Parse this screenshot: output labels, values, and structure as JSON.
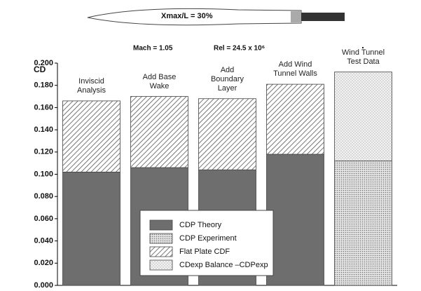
{
  "chart_data": {
    "type": "stacked-bar",
    "banner": "Xmax/L = 30%",
    "annotations": [
      "Mach = 1.05",
      "Rel = 24.5 x 10⁶"
    ],
    "y_label": "CD",
    "categories": [
      "Inviscid Analysis",
      "Add Base Wake",
      "Add Boundary Layer",
      "Add Wind Tunnel Walls",
      "Wind Tunnel Test Data"
    ],
    "series": [
      {
        "name": "CDP Theory",
        "color": "#6e6e6e",
        "pattern": "solid",
        "values": [
          0.102,
          0.106,
          0.104,
          0.118,
          null
        ]
      },
      {
        "name": "CDP Experiment",
        "color": "#9a9a9a",
        "pattern": "dots",
        "values": [
          null,
          null,
          null,
          null,
          0.112
        ]
      },
      {
        "name": "Flat Plate CDF",
        "color": "#555555",
        "pattern": "hatch",
        "values": [
          0.064,
          0.064,
          0.064,
          0.063,
          null
        ]
      },
      {
        "name": "CDexp Balance –CDPexp",
        "color": "#bbbbbb",
        "pattern": "cross",
        "values": [
          null,
          null,
          null,
          null,
          0.08
        ]
      }
    ],
    "ylim": [
      0,
      0.2
    ],
    "yticks": [
      {
        "value": 0,
        "label": "0.000"
      },
      {
        "value": 0.02,
        "label": "0.020"
      },
      {
        "value": 0.04,
        "label": "0.040"
      },
      {
        "value": 0.06,
        "label": "0.060"
      },
      {
        "value": 0.08,
        "label": "0.080"
      },
      {
        "value": 0.1,
        "label": "0.100"
      },
      {
        "value": 0.12,
        "label": "0.120"
      },
      {
        "value": 0.14,
        "label": "0.140"
      },
      {
        "value": 0.16,
        "label": "0.160"
      },
      {
        "value": 0.18,
        "label": "0.180"
      },
      {
        "value": 0.2,
        "label": "0.200"
      }
    ]
  }
}
